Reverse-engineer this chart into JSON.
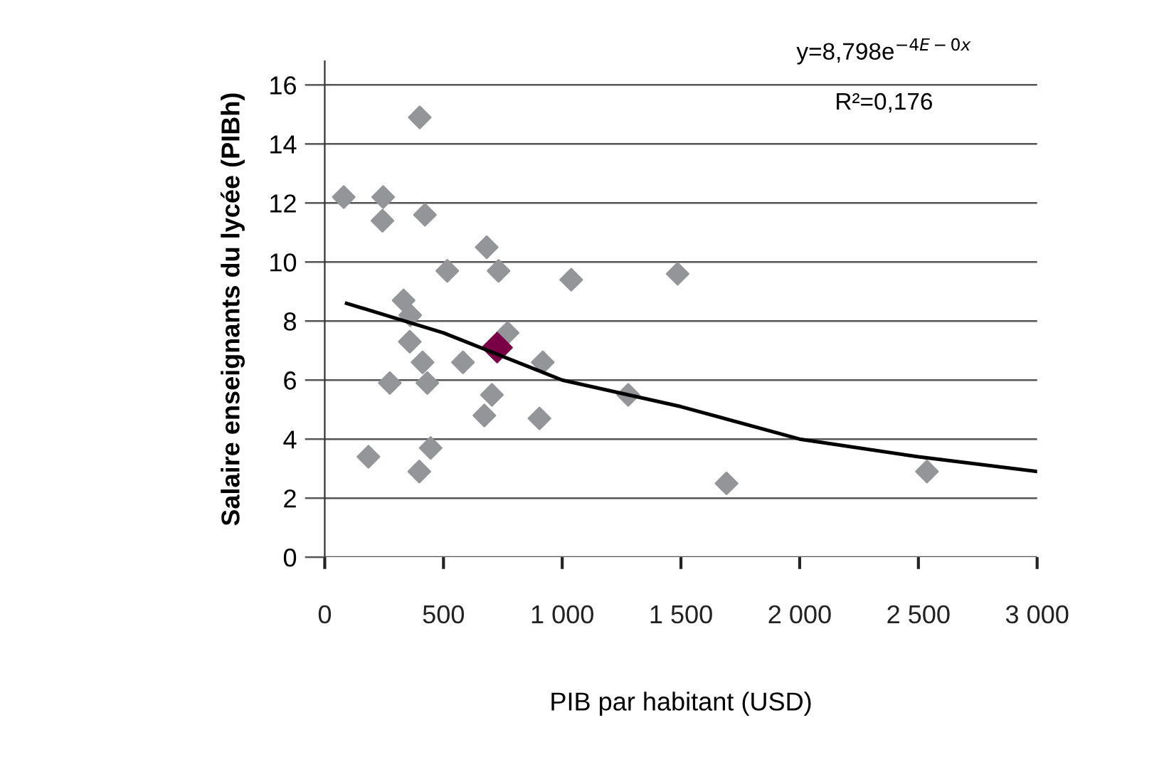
{
  "chart_data": {
    "type": "scatter",
    "xlabel": "PIB par habitant (USD)",
    "ylabel": "Salaire enseignants du lycée (PIBh)",
    "xlim": [
      0,
      3000
    ],
    "xticks": [
      0,
      500,
      {
        "value": 1000,
        "label": "1 000"
      },
      {
        "value": 1500,
        "label": "1 500"
      },
      {
        "value": 2000,
        "label": "2 000"
      },
      {
        "value": 2500,
        "label": "2 500"
      },
      {
        "value": 3000,
        "label": "3 000"
      }
    ],
    "ylim": [
      0,
      16.8
    ],
    "yticks": [
      0,
      2,
      4,
      6,
      8,
      10,
      12,
      14,
      16
    ],
    "grid": "y",
    "legend": false,
    "marker": "diamond",
    "annotations": [
      "y=8,798e$^{−4E−0x}$",
      "R²=0,176"
    ],
    "series": [
      {
        "color": "#939598",
        "x": [
          80,
          246,
          243,
          400,
          422,
          682,
          732,
          516,
          1038,
          1486,
          332,
          360,
          358,
          770,
          412,
          582,
          918,
          274,
          432,
          704,
          1278,
          672,
          904,
          184,
          446,
          398,
          1692,
          2536
        ],
        "values": [
          12.2,
          12.2,
          11.4,
          14.9,
          11.6,
          10.5,
          9.7,
          9.7,
          9.4,
          9.6,
          8.7,
          8.2,
          7.3,
          7.6,
          6.6,
          6.6,
          6.6,
          5.9,
          5.9,
          5.5,
          5.5,
          4.8,
          4.7,
          3.4,
          3.7,
          2.9,
          2.5,
          2.9
        ]
      },
      {
        "color": "#7a0046",
        "x": [
          726
        ],
        "values": [
          7.1
        ]
      },
      {
        "type": "line",
        "color": "#000000",
        "marker": "none",
        "x": [
          92,
          500,
          1000,
          1500,
          2000,
          2500,
          3000
        ],
        "values": [
          8.6,
          7.6,
          6.0,
          5.1,
          4.0,
          3.4,
          2.9
        ]
      }
    ]
  }
}
